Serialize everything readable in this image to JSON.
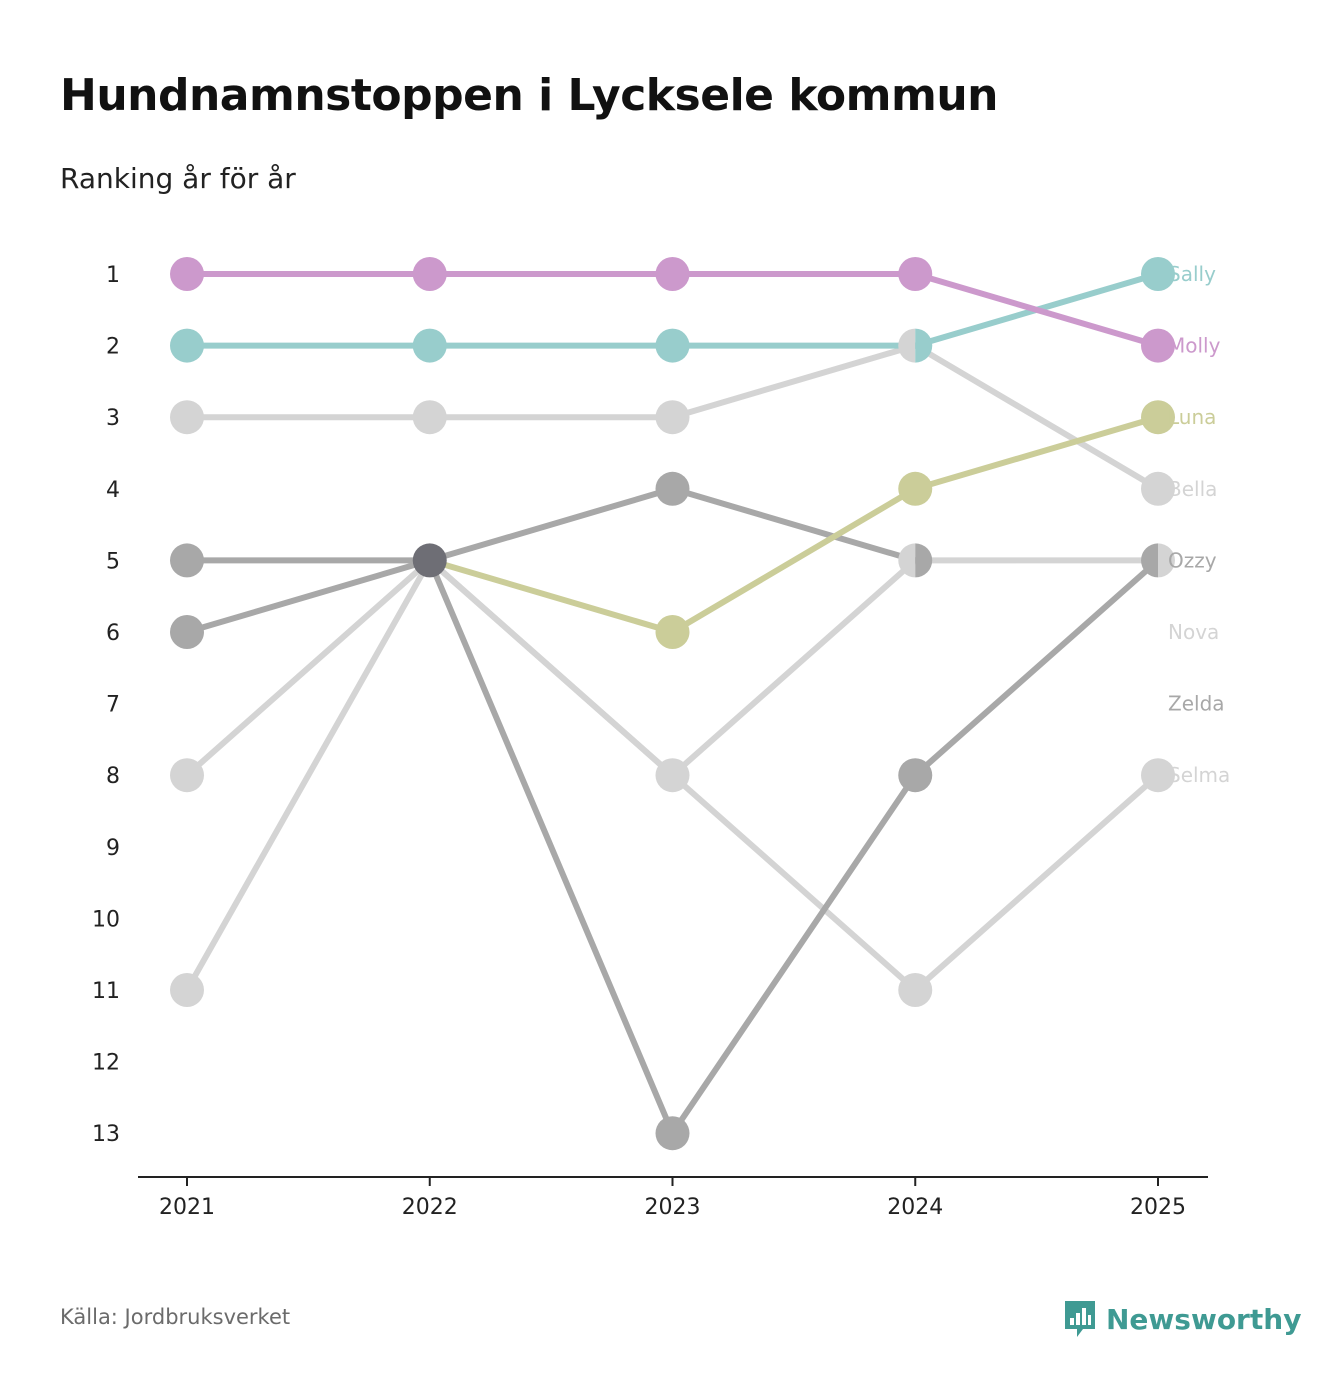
{
  "header": {
    "title": "Hundnamnstoppen i Lycksele kommun",
    "subtitle": "Ranking år för år"
  },
  "footer": {
    "source": "Källa: Jordbruksverket",
    "brand": "Newsworthy",
    "brand_icon": "bar-chart-speech-bubble-icon",
    "brand_color": "#3f9a93"
  },
  "chart_data": {
    "type": "line",
    "title": "Hundnamnstoppen i Lycksele kommun",
    "subtitle": "Ranking år för år",
    "xlabel": "",
    "ylabel": "",
    "categories": [
      "2021",
      "2022",
      "2023",
      "2024",
      "2025"
    ],
    "y_ticks": [
      "1",
      "2",
      "3",
      "4",
      "5",
      "6",
      "7",
      "8",
      "9",
      "10",
      "11",
      "12",
      "13"
    ],
    "ylim": [
      1,
      13
    ],
    "y_inverted": true,
    "grid": false,
    "series": [
      {
        "name": "Selma",
        "color": "#d4d4d4",
        "values": [
          11,
          5,
          8,
          11,
          8
        ]
      },
      {
        "name": "Zelda",
        "color": "#a8a8a8",
        "values": [
          6,
          5,
          13,
          8,
          5
        ]
      },
      {
        "name": "Nova",
        "color": "#d4d4d4",
        "values": [
          8,
          5,
          8,
          5,
          5
        ]
      },
      {
        "name": "Ozzy",
        "color": "#a8a8a8",
        "values": [
          5,
          5,
          4,
          5,
          null
        ]
      },
      {
        "name": "Bella",
        "color": "#d4d4d4",
        "values": [
          3,
          3,
          3,
          2,
          4
        ]
      },
      {
        "name": "Luna",
        "color": "#cbcd99",
        "values": [
          null,
          5,
          6,
          4,
          3
        ]
      },
      {
        "name": "Sally",
        "color": "#98cdcc",
        "values": [
          2,
          2,
          2,
          2,
          1
        ]
      },
      {
        "name": "Molly",
        "color": "#cc99cc",
        "values": [
          1,
          1,
          1,
          1,
          2
        ]
      }
    ],
    "shared_point_color": "#6e6e75",
    "label_order": [
      "Sally",
      "Molly",
      "Luna",
      "Bella",
      "Ozzy",
      "Nova",
      "Zelda",
      "Selma"
    ]
  }
}
